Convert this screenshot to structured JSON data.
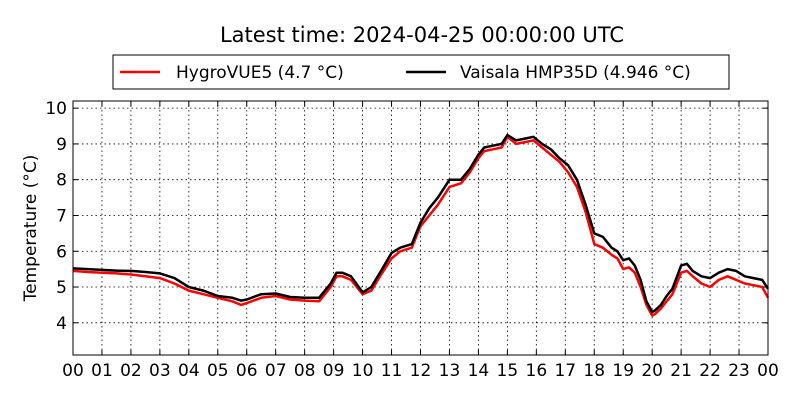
{
  "chart_data": {
    "type": "line",
    "title": "Latest time: 2024-04-25 00:00:00 UTC",
    "xlabel": "",
    "ylabel": "Temperature (°C)",
    "xlim": [
      0,
      24
    ],
    "ylim": [
      3.1,
      10.2
    ],
    "grid": true,
    "legend_position": "top",
    "x_tick_labels": [
      "00",
      "01",
      "02",
      "03",
      "04",
      "05",
      "06",
      "07",
      "08",
      "09",
      "10",
      "11",
      "12",
      "13",
      "14",
      "15",
      "16",
      "17",
      "18",
      "19",
      "20",
      "21",
      "22",
      "23",
      "00"
    ],
    "y_ticks": [
      4,
      5,
      6,
      7,
      8,
      9,
      10
    ],
    "series": [
      {
        "name": "HygroVUE5 (4.7 °C)",
        "color": "#ff0000",
        "x": [
          0,
          0.5,
          1,
          1.5,
          2,
          2.5,
          3,
          3.5,
          4,
          4.5,
          5,
          5.5,
          5.8,
          6,
          6.5,
          7,
          7.5,
          8,
          8.5,
          8.9,
          9.1,
          9.3,
          9.6,
          10,
          10.3,
          10.6,
          11,
          11.3,
          11.7,
          12,
          12.3,
          12.6,
          13,
          13.4,
          13.7,
          14,
          14.2,
          14.5,
          14.8,
          15,
          15.3,
          15.6,
          15.9,
          16.2,
          16.5,
          16.8,
          17.1,
          17.4,
          17.7,
          18,
          18.3,
          18.6,
          18.8,
          19,
          19.2,
          19.4,
          19.6,
          19.8,
          20,
          20.1,
          20.3,
          20.5,
          20.7,
          21,
          21.2,
          21.4,
          21.7,
          22,
          22.3,
          22.6,
          22.9,
          23.2,
          23.5,
          23.8,
          24
        ],
        "y": [
          5.45,
          5.42,
          5.4,
          5.38,
          5.35,
          5.3,
          5.25,
          5.1,
          4.9,
          4.8,
          4.7,
          4.6,
          4.5,
          4.55,
          4.7,
          4.75,
          4.65,
          4.62,
          4.6,
          5.0,
          5.3,
          5.3,
          5.2,
          4.8,
          4.9,
          5.3,
          5.8,
          6.0,
          6.1,
          6.7,
          7.0,
          7.3,
          7.8,
          7.9,
          8.2,
          8.6,
          8.8,
          8.85,
          8.9,
          9.2,
          9.0,
          9.05,
          9.1,
          8.9,
          8.7,
          8.5,
          8.2,
          7.8,
          7.1,
          6.2,
          6.1,
          5.9,
          5.8,
          5.5,
          5.55,
          5.4,
          5.0,
          4.5,
          4.2,
          4.25,
          4.4,
          4.6,
          4.8,
          5.4,
          5.45,
          5.3,
          5.1,
          5.0,
          5.2,
          5.3,
          5.2,
          5.1,
          5.05,
          5.0,
          4.7
        ]
      },
      {
        "name": "Vaisala HMP35D (4.946 °C)",
        "color": "#000000",
        "x": [
          0,
          0.5,
          1,
          1.5,
          2,
          2.5,
          3,
          3.5,
          4,
          4.5,
          5,
          5.5,
          5.8,
          6,
          6.5,
          7,
          7.5,
          8,
          8.5,
          8.9,
          9.1,
          9.3,
          9.6,
          10,
          10.3,
          10.6,
          11,
          11.3,
          11.7,
          12,
          12.3,
          12.6,
          13,
          13.4,
          13.7,
          14,
          14.2,
          14.5,
          14.8,
          15,
          15.3,
          15.6,
          15.9,
          16.2,
          16.5,
          16.8,
          17.1,
          17.4,
          17.7,
          18,
          18.3,
          18.6,
          18.8,
          19,
          19.2,
          19.4,
          19.6,
          19.8,
          20,
          20.1,
          20.3,
          20.5,
          20.7,
          21,
          21.2,
          21.4,
          21.7,
          22,
          22.3,
          22.6,
          22.9,
          23.2,
          23.5,
          23.8,
          24
        ],
        "y": [
          5.52,
          5.5,
          5.48,
          5.46,
          5.45,
          5.42,
          5.38,
          5.25,
          5.0,
          4.9,
          4.75,
          4.7,
          4.62,
          4.65,
          4.8,
          4.82,
          4.72,
          4.7,
          4.7,
          5.1,
          5.4,
          5.4,
          5.3,
          4.85,
          5.0,
          5.4,
          5.95,
          6.1,
          6.2,
          6.8,
          7.2,
          7.5,
          8.0,
          8.0,
          8.3,
          8.7,
          8.9,
          8.95,
          9.0,
          9.25,
          9.1,
          9.15,
          9.2,
          9.0,
          8.85,
          8.6,
          8.4,
          8.0,
          7.3,
          6.5,
          6.4,
          6.1,
          6.0,
          5.75,
          5.8,
          5.6,
          5.2,
          4.6,
          4.3,
          4.35,
          4.5,
          4.75,
          4.95,
          5.6,
          5.65,
          5.45,
          5.3,
          5.25,
          5.4,
          5.5,
          5.45,
          5.3,
          5.25,
          5.2,
          4.95
        ]
      }
    ]
  }
}
